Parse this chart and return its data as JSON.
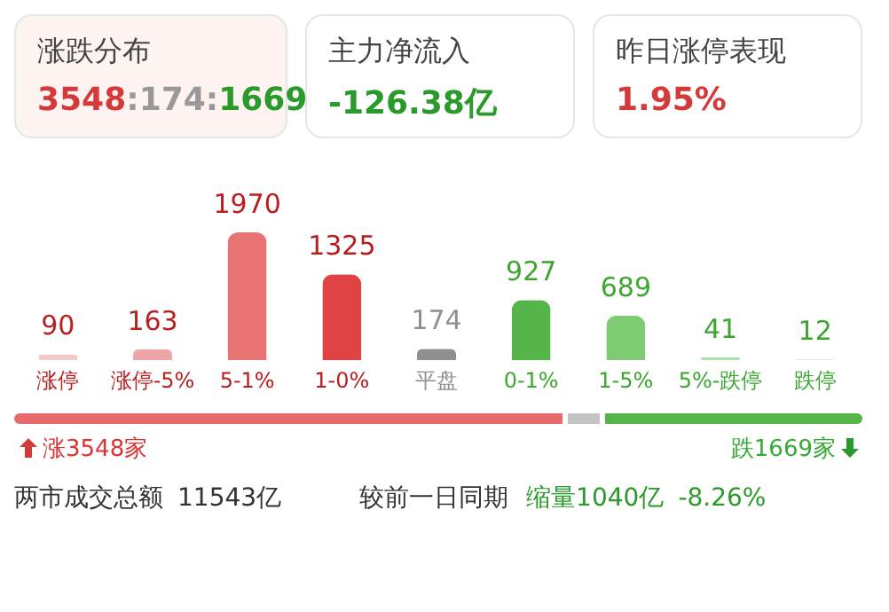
{
  "chart_data": {
    "type": "bar",
    "categories": [
      "涨停",
      "涨停-5%",
      "5-1%",
      "1-0%",
      "平盘",
      "0-1%",
      "1-5%",
      "5%-跌停",
      "跌停"
    ],
    "values": [
      90,
      163,
      1970,
      1325,
      174,
      927,
      689,
      41,
      12
    ],
    "colors": [
      "#f6c9c9",
      "#eea5a5",
      "#e97272",
      "#e04343",
      "#8f8f8f",
      "#55b548",
      "#7ecb74",
      "#ade3a8",
      "#d6f0d3"
    ],
    "data_labels": true,
    "annotations": [
      "涨跌分布",
      "3548:174:1669",
      "主力净流入",
      "-126.38亿",
      "昨日涨停表现",
      "1.95%",
      "涨3548家",
      "跌1669家",
      "两市成交总额",
      "11543亿",
      "较前一日同期",
      "缩量1040亿",
      "-8.26%"
    ]
  }
}
